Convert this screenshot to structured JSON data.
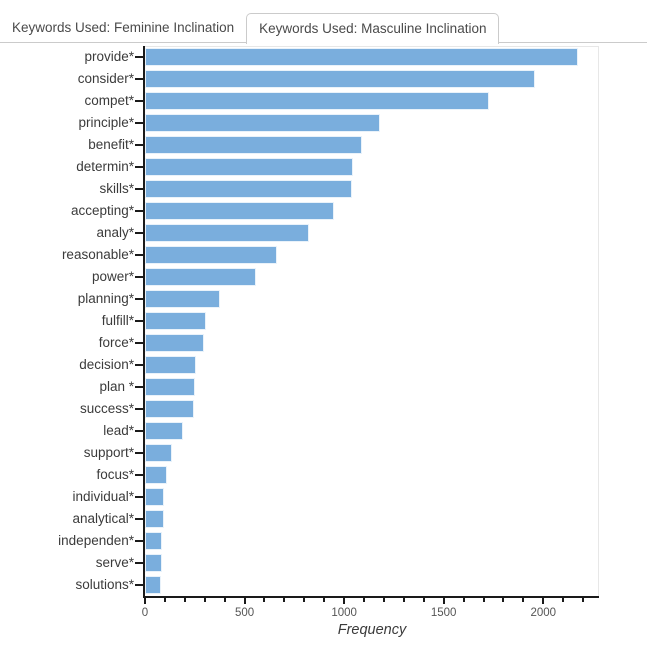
{
  "tabs": [
    {
      "label": "Keywords Used: Feminine Inclination",
      "active": false
    },
    {
      "label": "Keywords Used: Masculine Inclination",
      "active": true
    }
  ],
  "chart_data": {
    "type": "bar",
    "orientation": "horizontal",
    "title": "",
    "xlabel": "Frequency",
    "ylabel": "",
    "categories": [
      "provide*",
      "consider*",
      "compet*",
      "principle*",
      "benefit*",
      "determin*",
      "skills*",
      "accepting*",
      "analy*",
      "reasonable*",
      "power*",
      "planning*",
      "fulfill*",
      "force*",
      "decision*",
      "plan *",
      "success*",
      "lead*",
      "support*",
      "focus*",
      "individual*",
      "analytical*",
      "independen*",
      "serve*",
      "solutions*"
    ],
    "values": [
      2175,
      1958,
      1728,
      1180,
      1092,
      1046,
      1038,
      950,
      823,
      663,
      557,
      378,
      307,
      295,
      258,
      253,
      247,
      193,
      136,
      108,
      96,
      94,
      86,
      83,
      79
    ],
    "xlim": [
      0,
      2280
    ],
    "x_major_ticks": [
      0,
      500,
      1000,
      1500,
      2000
    ],
    "x_minor_tick_step": 100,
    "grid": false,
    "legend": "none",
    "bar_color": "#7aaedd"
  },
  "colors": {
    "bar": "#7aaedd",
    "axis": "#1a1a1a",
    "tab_border": "#cbcbcb",
    "text": "#3b3b3b"
  }
}
